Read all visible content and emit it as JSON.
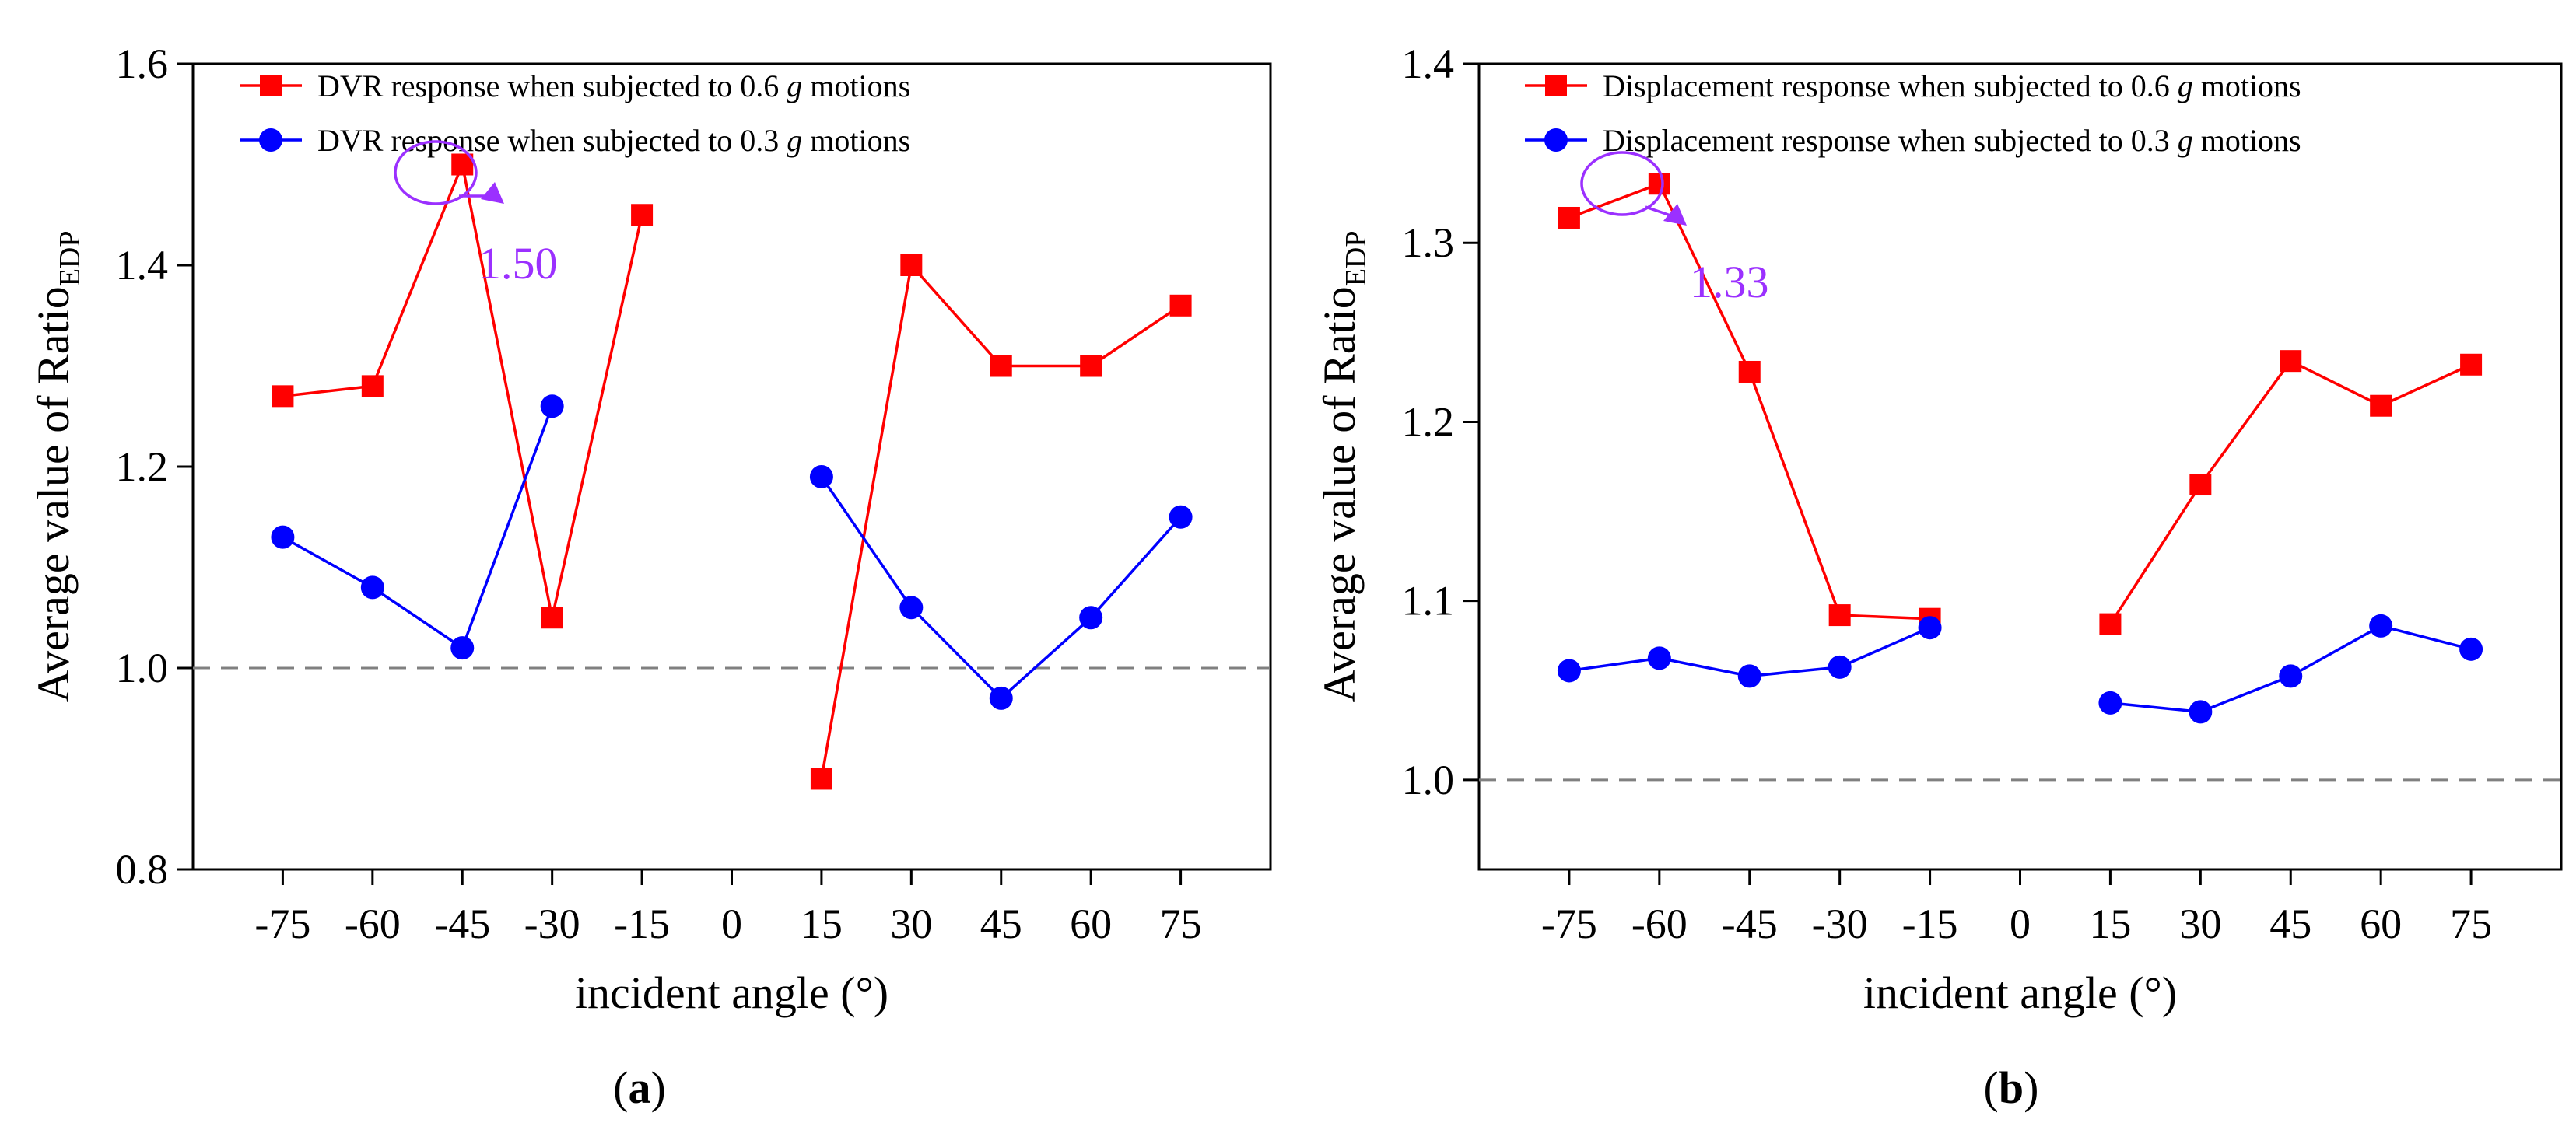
{
  "chart_data": [
    {
      "type": "line",
      "panel": "a",
      "caption_open": "(",
      "caption_letter": "a",
      "caption_close": ")",
      "xlabel": "incident angle (°)",
      "ylabel_main": "Average value of Ratio",
      "ylabel_sub": "EDP",
      "categories": [
        "-75",
        "-60",
        "-45",
        "-30",
        "-15",
        "0",
        "15",
        "30",
        "45",
        "60",
        "75"
      ],
      "x": [
        -75,
        -60,
        -45,
        -30,
        -15,
        0,
        15,
        30,
        45,
        60,
        75
      ],
      "ylim": [
        0.8,
        1.6
      ],
      "yticks": [
        "0.8",
        "1.0",
        "1.2",
        "1.4",
        "1.6"
      ],
      "yticks_values": [
        0.8,
        1.0,
        1.2,
        1.4,
        1.6
      ],
      "reference_line": 1.0,
      "series": [
        {
          "name_prefix": "DVR response when subjected to 0.6 ",
          "name_g": "g",
          "name_suffix": " motions",
          "color": "#ff0000",
          "marker": "square",
          "values": [
            1.27,
            1.28,
            1.5,
            1.05,
            1.45,
            null,
            0.89,
            1.4,
            1.3,
            1.3,
            1.36
          ]
        },
        {
          "name_prefix": "DVR response when subjected to 0.3 ",
          "name_g": "g",
          "name_suffix": " motions",
          "color": "#0000ff",
          "marker": "circle",
          "values": [
            1.13,
            1.08,
            1.02,
            1.26,
            null,
            null,
            1.19,
            1.06,
            0.97,
            1.05,
            1.15
          ]
        }
      ],
      "annotation": {
        "text": "1.50",
        "x": -45,
        "y": 1.5,
        "color": "#9b30ff"
      }
    },
    {
      "type": "line",
      "panel": "b",
      "caption_open": "(",
      "caption_letter": "b",
      "caption_close": ")",
      "xlabel": "incident angle (°)",
      "ylabel_main": "Average value of Ratio",
      "ylabel_sub": "EDP",
      "categories": [
        "-75",
        "-60",
        "-45",
        "-30",
        "-15",
        "0",
        "15",
        "30",
        "45",
        "60",
        "75"
      ],
      "x": [
        -75,
        -60,
        -45,
        -30,
        -15,
        0,
        15,
        30,
        45,
        60,
        75
      ],
      "ylim": [
        0.95,
        1.4
      ],
      "yticks": [
        "1.0",
        "1.1",
        "1.2",
        "1.3",
        "1.4"
      ],
      "yticks_values": [
        1.0,
        1.1,
        1.2,
        1.3,
        1.4
      ],
      "reference_line": 1.0,
      "series": [
        {
          "name_prefix": "Displacement response when subjected to 0.6 ",
          "name_g": "g",
          "name_suffix": " motions",
          "color": "#ff0000",
          "marker": "square",
          "values": [
            1.314,
            1.333,
            1.228,
            1.092,
            1.09,
            null,
            1.087,
            1.165,
            1.234,
            1.209,
            1.232
          ]
        },
        {
          "name_prefix": "Displacement response when subjected to 0.3 ",
          "name_g": "g",
          "name_suffix": " motions",
          "color": "#0000ff",
          "marker": "circle",
          "values": [
            1.061,
            1.068,
            1.058,
            1.063,
            1.085,
            null,
            1.043,
            1.038,
            1.058,
            1.086,
            1.073
          ]
        }
      ],
      "annotation": {
        "text": "1.33",
        "x": -60,
        "y": 1.333,
        "color": "#9b30ff"
      }
    }
  ]
}
